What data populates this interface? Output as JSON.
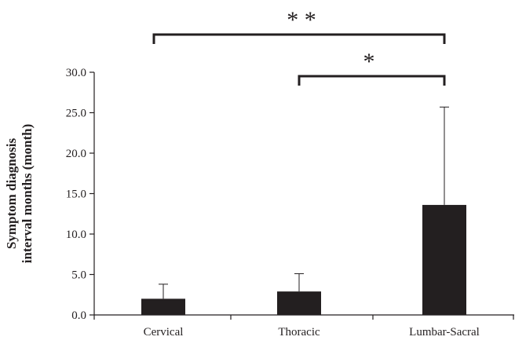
{
  "chart_data": {
    "type": "bar",
    "categories": [
      "Cervical",
      "Thoracic",
      "Lumbar-Sacral"
    ],
    "values": [
      2.0,
      2.9,
      13.6
    ],
    "error_upper": [
      3.8,
      5.1,
      25.7
    ],
    "ylabel_lines": [
      "Symptom diagnosis",
      "interval months (month)"
    ],
    "xlabel": "",
    "title": "",
    "ylim": [
      0,
      30
    ],
    "yticks": [
      "0.0",
      "5.0",
      "10.0",
      "15.0",
      "20.0",
      "25.0",
      "30.0"
    ],
    "ytick_values": [
      0,
      5,
      10,
      15,
      20,
      25,
      30
    ],
    "grid": false,
    "legend": "none",
    "bar_color": "#231f20",
    "error_bar_color": "#231f20",
    "significance": [
      {
        "from": "Cervical",
        "to": "Lumbar-Sacral",
        "label": "* *"
      },
      {
        "from": "Thoracic",
        "to": "Lumbar-Sacral",
        "label": "*"
      }
    ]
  }
}
